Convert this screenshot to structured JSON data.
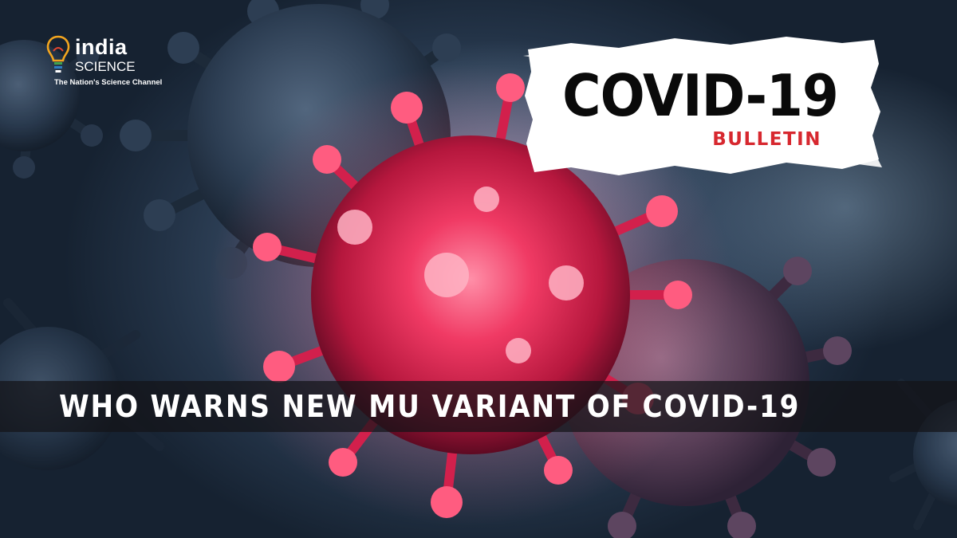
{
  "logo": {
    "brand_top": "india",
    "brand_bottom": "SCIENCE",
    "tagline": "The Nation's Science Channel",
    "icon": "lightbulb-icon"
  },
  "badge": {
    "title": "COVID-19",
    "subtitle": "BULLETIN",
    "subtitle_color": "#d7282f"
  },
  "headline": {
    "text": "WHO WARNS NEW MU VARIANT OF COVID-19"
  },
  "colors": {
    "virus_red": "#e8305a",
    "virus_dark": "#2a3a4e",
    "background": "#3c516b"
  }
}
